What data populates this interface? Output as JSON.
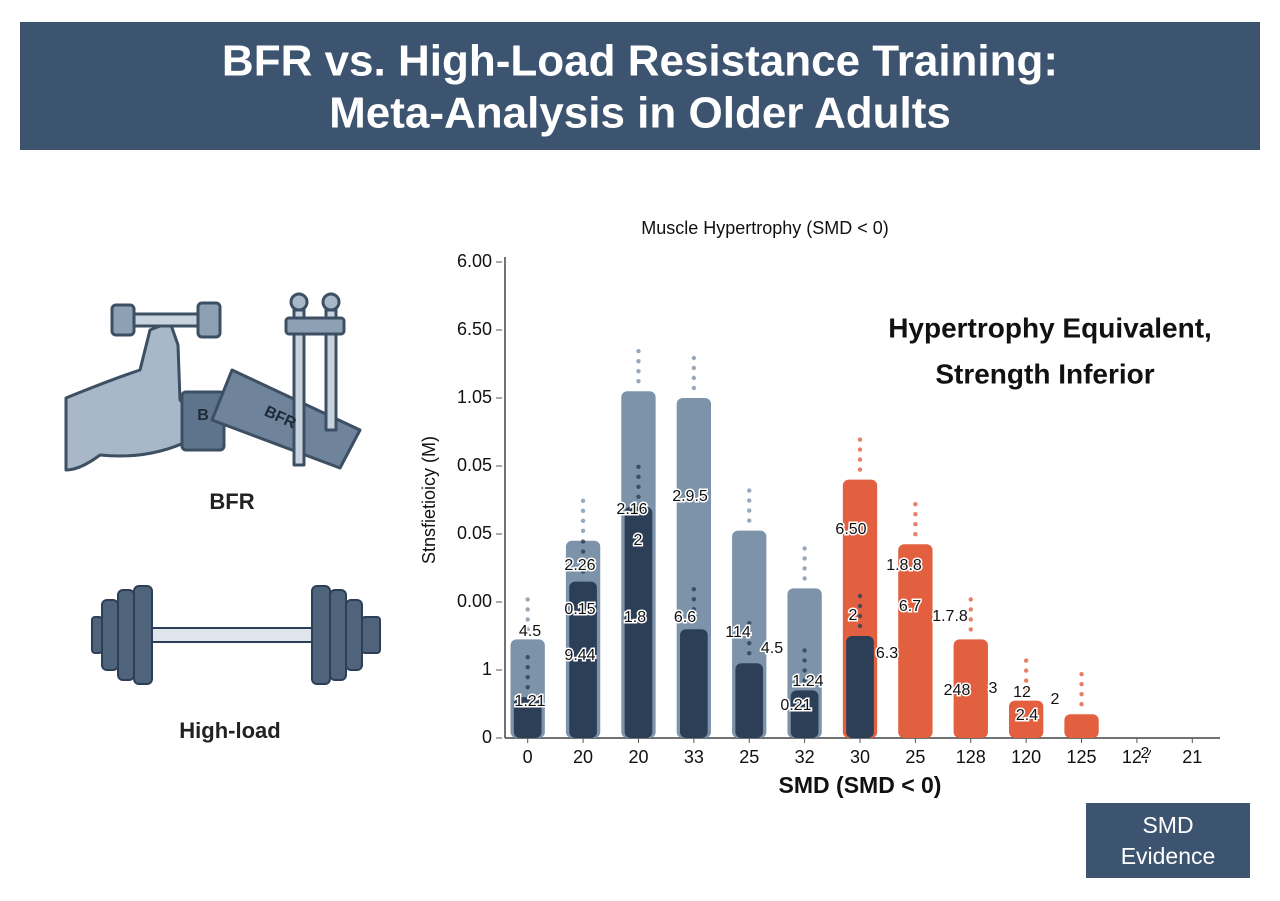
{
  "header": {
    "title_lines": [
      "BFR vs. High-Load Resistance Training:",
      "Meta-Analysis in Older Adults"
    ]
  },
  "illustrations": {
    "cuff_text": "B",
    "band_text": "BFR",
    "bfr_label": "BFR",
    "high_load_label": "High-load"
  },
  "chart_data": {
    "type": "bar",
    "title": "Muscle Hypertrophy (SMD < 0)",
    "x_label": "SMD (SMD < 0)",
    "y_label": "Stnsfietioicy (M)",
    "categories": [
      "0",
      "20",
      "20",
      "33",
      "25",
      "32",
      "30",
      "25",
      "128",
      "120",
      "125",
      "127",
      "21"
    ],
    "ylim": [
      0,
      7
    ],
    "yticks": [
      {
        "value": 7,
        "label": "6.00"
      },
      {
        "value": 6,
        "label": "6.50"
      },
      {
        "value": 5,
        "label": "1.05"
      },
      {
        "value": 4,
        "label": "0.05"
      },
      {
        "value": 3,
        "label": "0.05"
      },
      {
        "value": 2,
        "label": "0.00"
      },
      1,
      0
    ],
    "series": [
      {
        "color": "#7d93aa",
        "values": [
          1.45,
          2.9,
          5.1,
          5.0,
          3.05,
          2.2,
          null,
          null,
          null,
          null,
          null,
          null,
          null
        ]
      },
      {
        "color": "#e2603f",
        "values": [
          null,
          null,
          null,
          null,
          null,
          null,
          3.8,
          2.85,
          1.45,
          0.55,
          0.35,
          null,
          null
        ]
      },
      {
        "color": "#2c3f57",
        "values": [
          0.6,
          2.3,
          3.4,
          1.6,
          1.1,
          0.7,
          1.5,
          null,
          null,
          null,
          null,
          null,
          null
        ]
      }
    ],
    "annotation_lines": [
      "Hypertrophy Equivalent,",
      "Strength Inferior"
    ],
    "data_labels": [
      "4.5",
      "1.21",
      "2.26",
      "0.15",
      "9.44",
      "2.16",
      "2",
      "1.8",
      "2.9.5",
      "6.6",
      "114",
      "4.5",
      "1.24",
      "0.21",
      "6.50",
      "1.8.8",
      "2",
      "6.7",
      "1.7.8",
      "6.3",
      "248",
      "3",
      "12",
      "2.4",
      "2",
      "2"
    ]
  },
  "badge": {
    "lines": [
      "SMD",
      "Evidence"
    ]
  }
}
